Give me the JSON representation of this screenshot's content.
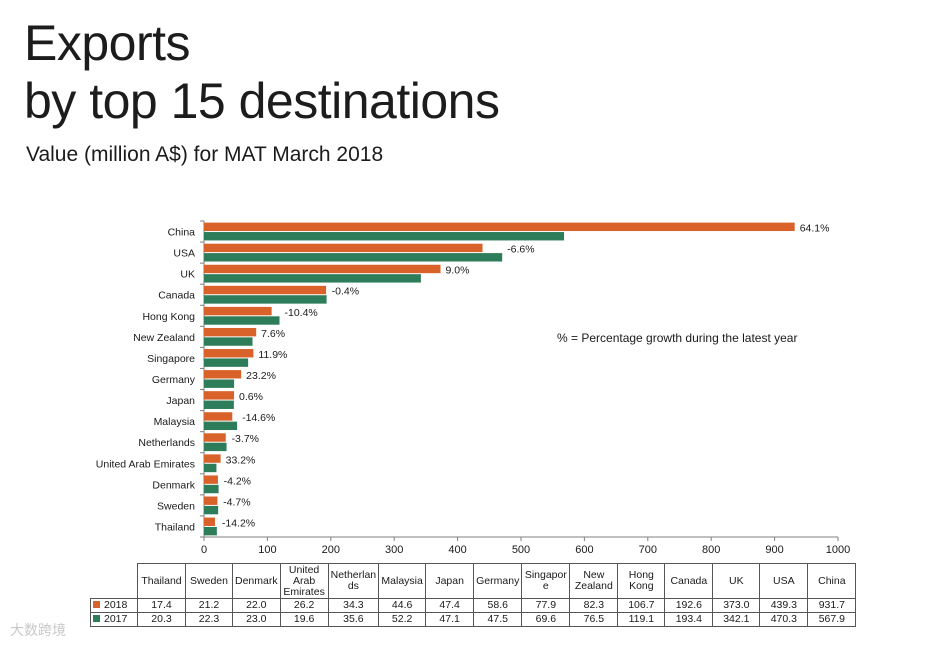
{
  "page": {
    "title_line1": "Exports",
    "title_line2": "by top 15 destinations",
    "subtitle": "Value (million A$) for MAT March 2018",
    "note": "% = Percentage growth during the latest year",
    "watermark": "大数跨境"
  },
  "colors": {
    "s2018": "#d8622a",
    "s2017": "#2e7d5a",
    "grid": "#bfbfbf",
    "axis": "#808080"
  },
  "chart_data": {
    "type": "bar",
    "orientation": "horizontal",
    "categories": [
      "China",
      "USA",
      "UK",
      "Canada",
      "Hong Kong",
      "New Zealand",
      "Singapore",
      "Germany",
      "Japan",
      "Malaysia",
      "Netherlands",
      "United Arab Emirates",
      "Denmark",
      "Sweden",
      "Thailand"
    ],
    "series": [
      {
        "name": "2018",
        "values": [
          931.7,
          439.3,
          373.0,
          192.6,
          106.7,
          82.3,
          77.9,
          58.6,
          47.4,
          44.6,
          34.3,
          26.2,
          22.0,
          21.2,
          17.4
        ]
      },
      {
        "name": "2017",
        "values": [
          567.9,
          470.3,
          342.1,
          193.4,
          119.1,
          76.5,
          69.6,
          47.5,
          47.1,
          52.2,
          35.6,
          19.6,
          23.0,
          22.3,
          20.3
        ]
      }
    ],
    "growth_labels": [
      "64.1%",
      "-6.6%",
      "9.0%",
      "-0.4%",
      "-10.4%",
      "7.6%",
      "11.9%",
      "23.2%",
      "0.6%",
      "-14.6%",
      "-3.7%",
      "33.2%",
      "-4.2%",
      "-4.7%",
      "-14.2%"
    ],
    "xlim": [
      0,
      1000
    ],
    "xticks": [
      0,
      100,
      200,
      300,
      400,
      500,
      600,
      700,
      800,
      900,
      1000
    ],
    "grid": false
  },
  "table": {
    "headers": [
      "Thailand",
      "Sweden",
      "Denmark",
      "United Arab Emirates",
      "Netherlan ds",
      "Malaysia",
      "Japan",
      "Germany",
      "Singapor e",
      "New Zealand",
      "Hong Kong",
      "Canada",
      "UK",
      "USA",
      "China"
    ],
    "rows": [
      {
        "label": "2018",
        "values": [
          "17.4",
          "21.2",
          "22.0",
          "26.2",
          "34.3",
          "44.6",
          "47.4",
          "58.6",
          "77.9",
          "82.3",
          "106.7",
          "192.6",
          "373.0",
          "439.3",
          "931.7"
        ]
      },
      {
        "label": "2017",
        "values": [
          "20.3",
          "22.3",
          "23.0",
          "19.6",
          "35.6",
          "52.2",
          "47.1",
          "47.5",
          "69.6",
          "76.5",
          "119.1",
          "193.4",
          "342.1",
          "470.3",
          "567.9"
        ]
      }
    ]
  }
}
